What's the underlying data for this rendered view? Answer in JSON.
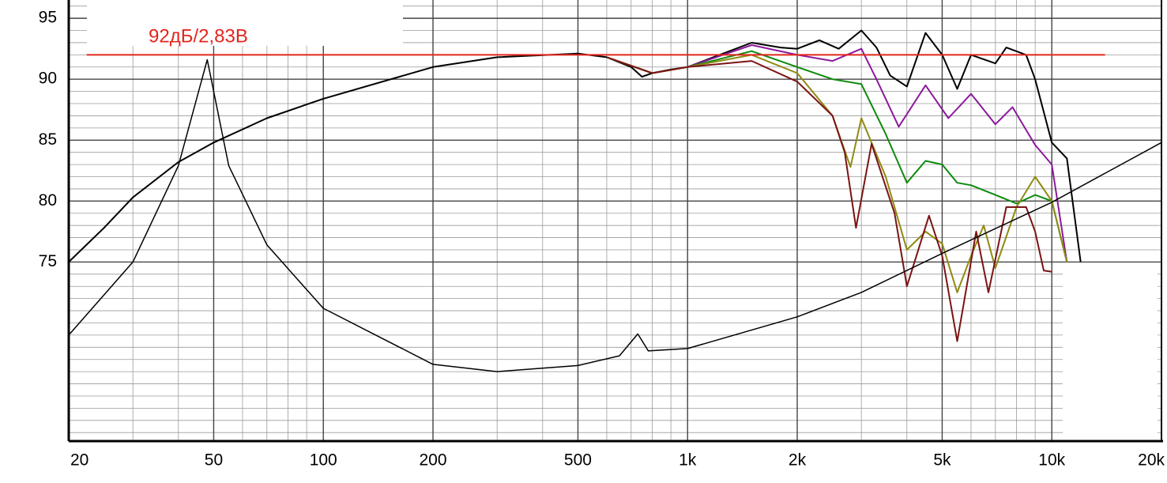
{
  "chart_data": {
    "type": "line",
    "xscale": "log",
    "grid": true,
    "xlim": [
      20,
      20000
    ],
    "ylim": [
      60.3,
      96.5
    ],
    "xticks": [
      20,
      50,
      100,
      200,
      500,
      {
        "value": 1000,
        "label": "1k"
      },
      {
        "value": 2000,
        "label": "2k"
      },
      {
        "value": 5000,
        "label": "5k"
      },
      {
        "value": 10000,
        "label": "10k"
      },
      {
        "value": 20000,
        "label": "20k"
      }
    ],
    "yticks": [
      75,
      80,
      85,
      90,
      95
    ],
    "xgrid": [
      30,
      40,
      60,
      70,
      80,
      90,
      300,
      400,
      600,
      700,
      800,
      900,
      3000,
      4000,
      6000,
      7000,
      8000,
      9000
    ],
    "ygrid": [
      61,
      62,
      63,
      64,
      65,
      66,
      67,
      68,
      69,
      70,
      71,
      72,
      73,
      74,
      76,
      77,
      78,
      79,
      81,
      82,
      83,
      84,
      86,
      87,
      88,
      89,
      91,
      92,
      93,
      94,
      96
    ],
    "reference_line": {
      "value": 92,
      "label": "92дБ/2,83В",
      "color": "#e3261c",
      "x": [
        22.4,
        14000
      ]
    },
    "series": [
      {
        "color": "#000000",
        "width": 2,
        "x": [
          20,
          25,
          30,
          40,
          50,
          70,
          100,
          200,
          300,
          500,
          600,
          700,
          750,
          800,
          900,
          1000,
          1200,
          1500,
          1800,
          2000,
          2300,
          2600,
          3000,
          3300,
          3600,
          4000,
          4500,
          5000,
          5500,
          6000,
          7000,
          7500,
          8500,
          9000,
          10000,
          11000,
          12000
        ],
        "values": [
          75,
          77.8,
          80.3,
          83.2,
          84.8,
          86.8,
          88.4,
          91,
          91.8,
          92.1,
          91.8,
          91,
          90.2,
          90.5,
          90.8,
          91,
          91.9,
          93,
          92.6,
          92.5,
          93.2,
          92.5,
          94,
          92.6,
          90.3,
          89.4,
          93.8,
          92,
          89.2,
          92,
          91.3,
          92.6,
          92,
          90,
          84.8,
          83.5,
          75
        ]
      },
      {
        "color": "#8b1a9b",
        "width": 2,
        "x": [
          600,
          800,
          1000,
          1500,
          2000,
          2500,
          3000,
          3300,
          3800,
          4500,
          5200,
          6000,
          7000,
          7800,
          9000,
          10000,
          11000
        ],
        "values": [
          91.8,
          90.5,
          91,
          92.8,
          92,
          91.5,
          92.5,
          90,
          86.1,
          89.5,
          86.8,
          88.8,
          86.3,
          87.7,
          84.6,
          83,
          75
        ]
      },
      {
        "color": "#0e8a0e",
        "width": 2,
        "x": [
          600,
          800,
          1000,
          1500,
          2000,
          2500,
          3000,
          3500,
          4000,
          4500,
          5000,
          5500,
          6000,
          7000,
          8000,
          9000,
          10000,
          11000
        ],
        "values": [
          91.8,
          90.5,
          91,
          92.3,
          91,
          90,
          89.6,
          85.5,
          81.5,
          83.3,
          83,
          81.5,
          81.3,
          80.5,
          79.8,
          80.5,
          80,
          75
        ]
      },
      {
        "color": "#8f8a12",
        "width": 2,
        "x": [
          600,
          800,
          1000,
          1500,
          2000,
          2500,
          2800,
          3000,
          3500,
          4000,
          4500,
          5000,
          5500,
          6000,
          6500,
          7000,
          8000,
          9000,
          10000,
          11000
        ],
        "values": [
          91.8,
          90.5,
          91,
          92,
          90.5,
          87,
          82.8,
          86.8,
          82,
          76,
          77.5,
          76.5,
          72.5,
          75.5,
          78,
          74.5,
          79.5,
          82,
          80,
          75
        ]
      },
      {
        "color": "#7a1414",
        "width": 2,
        "x": [
          600,
          800,
          1000,
          1500,
          2000,
          2500,
          2700,
          2900,
          3200,
          3700,
          4000,
          4600,
          5000,
          5500,
          6200,
          6700,
          7500,
          8500,
          9000,
          9500,
          10000
        ],
        "values": [
          91.8,
          90.5,
          91,
          91.5,
          89.8,
          87,
          84,
          77.8,
          84.7,
          79,
          73,
          78.8,
          75.5,
          68.5,
          77.5,
          72.5,
          79.5,
          79.5,
          77.5,
          74.3,
          74.2
        ]
      },
      {
        "color": "#000000",
        "width": 1.5,
        "x": [
          20,
          30,
          40,
          48,
          55,
          70,
          100,
          200,
          300,
          500,
          650,
          730,
          780,
          1000,
          2000,
          3000,
          5000,
          10000,
          20000
        ],
        "values": [
          69,
          75,
          82.9,
          91.6,
          82.9,
          76.4,
          71.2,
          66.6,
          66,
          66.5,
          67.3,
          69.1,
          67.7,
          67.9,
          70.5,
          72.5,
          75.7,
          79.9,
          84.8
        ]
      }
    ]
  }
}
